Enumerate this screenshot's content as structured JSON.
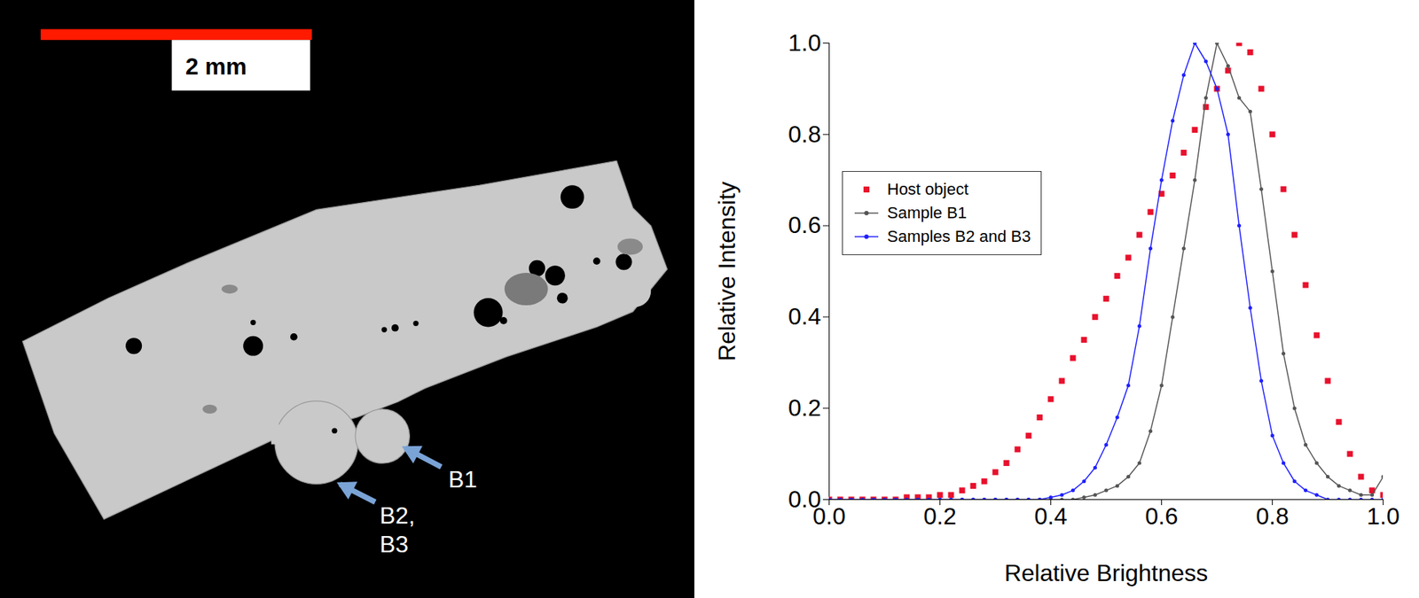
{
  "chart_data": {
    "type": "line",
    "x_label": "Relative Brightness",
    "y_label": "Relative Intensity",
    "xlim": [
      0,
      1
    ],
    "ylim": [
      0,
      1
    ],
    "xticks": [
      {
        "value": 0,
        "label": "0.0"
      },
      {
        "value": 0.2,
        "label": "0.2"
      },
      {
        "value": 0.4,
        "label": "0.4"
      },
      {
        "value": 0.6,
        "label": "0.6"
      },
      {
        "value": 0.8,
        "label": "0.8"
      },
      {
        "value": 1,
        "label": "1.0"
      }
    ],
    "yticks": [
      {
        "value": 0,
        "label": "0.0"
      },
      {
        "value": 0.2,
        "label": "0.2"
      },
      {
        "value": 0.4,
        "label": "0.4"
      },
      {
        "value": 0.6,
        "label": "0.6"
      },
      {
        "value": 0.8,
        "label": "0.8"
      },
      {
        "value": 1,
        "label": "1.0"
      }
    ],
    "legend": "upper left",
    "x": [
      0,
      0.02,
      0.04,
      0.06,
      0.08,
      0.1,
      0.12,
      0.14,
      0.16,
      0.18,
      0.2,
      0.22,
      0.24,
      0.26,
      0.28,
      0.3,
      0.32,
      0.34,
      0.36,
      0.38,
      0.4,
      0.42,
      0.44,
      0.46,
      0.48,
      0.5,
      0.52,
      0.54,
      0.56,
      0.58,
      0.6,
      0.62,
      0.64,
      0.66,
      0.68,
      0.7,
      0.72,
      0.74,
      0.76,
      0.78,
      0.8,
      0.82,
      0.84,
      0.86,
      0.88,
      0.9,
      0.92,
      0.94,
      0.96,
      0.98,
      1
    ],
    "series": [
      {
        "name": "Host object",
        "color": "#e8112d",
        "marker": "square",
        "line_style": "none",
        "values": [
          0,
          0,
          0,
          0,
          0,
          0,
          0,
          0.005,
          0.005,
          0.005,
          0.01,
          0.01,
          0.02,
          0.03,
          0.04,
          0.06,
          0.08,
          0.11,
          0.14,
          0.18,
          0.22,
          0.26,
          0.31,
          0.35,
          0.4,
          0.44,
          0.49,
          0.53,
          0.58,
          0.63,
          0.67,
          0.71,
          0.76,
          0.81,
          0.86,
          0.9,
          0.94,
          1.0,
          0.98,
          0.9,
          0.8,
          0.68,
          0.58,
          0.47,
          0.36,
          0.26,
          0.17,
          0.1,
          0.05,
          0.02,
          0.01
        ]
      },
      {
        "name": "Sample B1",
        "color": "#555555",
        "marker": "circle",
        "line_style": "solid",
        "values": [
          0,
          0,
          0,
          0,
          0,
          0,
          0,
          0,
          0,
          0,
          0,
          0,
          0,
          0,
          0,
          0,
          0,
          0,
          0,
          0,
          0,
          0,
          0,
          0.005,
          0.01,
          0.02,
          0.03,
          0.05,
          0.08,
          0.15,
          0.25,
          0.4,
          0.55,
          0.7,
          0.88,
          1.0,
          0.95,
          0.88,
          0.85,
          0.68,
          0.5,
          0.32,
          0.2,
          0.12,
          0.08,
          0.05,
          0.03,
          0.02,
          0.01,
          0.01,
          0.05
        ]
      },
      {
        "name": "Samples B2 and B3",
        "color": "#1f1fff",
        "marker": "circle",
        "line_style": "solid",
        "values": [
          0,
          0,
          0,
          0,
          0,
          0,
          0,
          0,
          0,
          0,
          0,
          0,
          0,
          0,
          0,
          0,
          0,
          0,
          0,
          0,
          0.005,
          0.01,
          0.02,
          0.04,
          0.07,
          0.12,
          0.18,
          0.25,
          0.38,
          0.55,
          0.7,
          0.83,
          0.93,
          1.0,
          0.96,
          0.9,
          0.8,
          0.6,
          0.42,
          0.26,
          0.14,
          0.08,
          0.04,
          0.02,
          0.01,
          0,
          0,
          0,
          0,
          0,
          0
        ]
      }
    ]
  },
  "image_panel": {
    "scale_bar_label": "2 mm",
    "labels": [
      "B1",
      "B2, B3"
    ]
  }
}
